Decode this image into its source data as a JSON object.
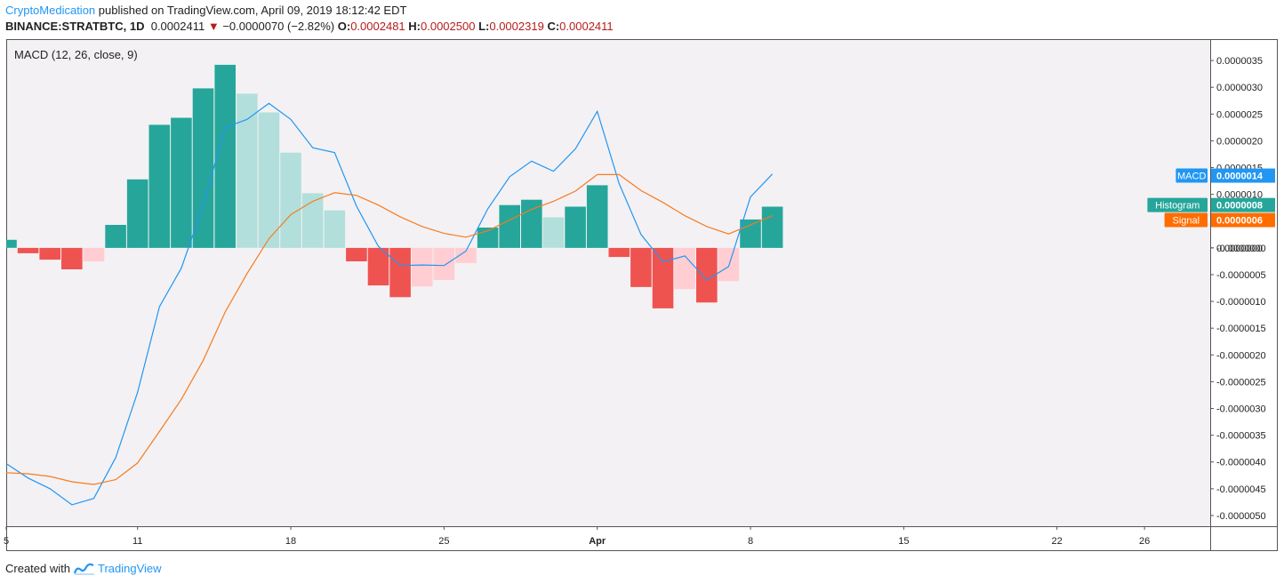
{
  "header": {
    "author": "CryptoMedication",
    "published_text": "published on TradingView.com, April 09, 2019 18:12:42 EDT",
    "symbol": "BINANCE:STRATBTC, 1D",
    "price": "0.0002411",
    "change": "−0.0000070 (−2.82%)",
    "open_label": "O:",
    "open": "0.0002481",
    "high_label": "H:",
    "high": "0.0002500",
    "low_label": "L:",
    "low": "0.0002319",
    "close_label": "C:",
    "close": "0.0002411"
  },
  "footer": {
    "created_with": "Created with",
    "brand": "TradingView"
  },
  "colors": {
    "macd_line": "#2196f3",
    "signal_line": "#f57c1f",
    "hist_pos_strong": "#26a69a",
    "hist_pos_weak": "#b2dfdb",
    "hist_neg_strong": "#ef5350",
    "hist_neg_weak": "#ffcdd2",
    "pane_bg": "#f3f1f4",
    "label_macd": "#2196f3",
    "label_hist": "#26a69a",
    "label_signal": "#ff6d00"
  },
  "chart_data": {
    "type": "bar",
    "title": "MACD (12, 26, close, 9)",
    "x_tick_labels": [
      "5",
      "11",
      "18",
      "25",
      "Apr",
      "8",
      "15",
      "22",
      "26"
    ],
    "y_ticks": [
      "0.0000035",
      "0.0000030",
      "0.0000025",
      "0.0000020",
      "0.0000015",
      "0.0000010",
      "0.0000005",
      "0.0000000",
      "-0.0000000",
      "-0.0000005",
      "-0.0000010",
      "-0.0000015",
      "-0.0000020",
      "-0.0000025",
      "-0.0000030",
      "-0.0000035",
      "-0.0000040",
      "-0.0000045",
      "-0.0000050"
    ],
    "y_tick_values": [
      3.5e-06,
      3e-06,
      2.5e-06,
      2e-06,
      1.5e-06,
      1e-06,
      5e-07,
      0,
      0,
      -5e-07,
      -1e-06,
      -1.5e-06,
      -2e-06,
      -2.5e-06,
      -3e-06,
      -3.5e-06,
      -4e-06,
      -4.5e-06,
      -5e-06
    ],
    "ylim": [
      -5.2e-06,
      3.9e-06
    ],
    "x_start": "2019-03-05",
    "x_end": "2019-04-29",
    "x_tick_dates": [
      "2019-03-05",
      "2019-03-11",
      "2019-03-18",
      "2019-03-25",
      "2019-04-01",
      "2019-04-08",
      "2019-04-15",
      "2019-04-22",
      "2019-04-26"
    ],
    "dates": [
      "2019-03-05",
      "2019-03-06",
      "2019-03-07",
      "2019-03-08",
      "2019-03-09",
      "2019-03-10",
      "2019-03-11",
      "2019-03-12",
      "2019-03-13",
      "2019-03-14",
      "2019-03-15",
      "2019-03-16",
      "2019-03-17",
      "2019-03-18",
      "2019-03-19",
      "2019-03-20",
      "2019-03-21",
      "2019-03-22",
      "2019-03-23",
      "2019-03-24",
      "2019-03-25",
      "2019-03-26",
      "2019-03-27",
      "2019-03-28",
      "2019-03-29",
      "2019-03-30",
      "2019-03-31",
      "2019-04-01",
      "2019-04-02",
      "2019-04-03",
      "2019-04-04",
      "2019-04-05",
      "2019-04-06",
      "2019-04-07",
      "2019-04-08",
      "2019-04-09"
    ],
    "series": [
      {
        "name": "Histogram",
        "kind": "histogram",
        "values": [
          1.5e-07,
          -1e-07,
          -2.2e-07,
          -4e-07,
          -2.5e-07,
          4.3e-07,
          1.28e-06,
          2.3e-06,
          2.43e-06,
          2.98e-06,
          3.42e-06,
          2.88e-06,
          2.53e-06,
          1.78e-06,
          1.02e-06,
          7e-07,
          -2.5e-07,
          -7e-07,
          -9.2e-07,
          -7.2e-07,
          -6e-07,
          -2.8e-07,
          3.8e-07,
          8e-07,
          9e-07,
          5.7e-07,
          7.7e-07,
          1.17e-06,
          -1.7e-07,
          -7.3e-07,
          -1.13e-06,
          -7.7e-07,
          -1.02e-06,
          -6.2e-07,
          5.3e-07,
          7.7e-07
        ]
      },
      {
        "name": "MACD",
        "kind": "line",
        "values": [
          -4.03e-06,
          -4.3e-06,
          -4.5e-06,
          -4.8e-06,
          -4.68e-06,
          -3.92e-06,
          -2.7e-06,
          -1.1e-06,
          -3.8e-07,
          8e-07,
          2.25e-06,
          2.4e-06,
          2.7e-06,
          2.4e-06,
          1.87e-06,
          1.78e-06,
          7.8e-07,
          3e-08,
          -3.3e-07,
          -3.2e-07,
          -3.3e-07,
          -6e-08,
          7.3e-07,
          1.33e-06,
          1.62e-06,
          1.43e-06,
          1.85e-06,
          2.55e-06,
          1.2e-06,
          2.5e-07,
          -2.6e-07,
          -1.5e-07,
          -6e-07,
          -3.5e-07,
          9.5e-07,
          1.38e-06
        ]
      },
      {
        "name": "Signal",
        "kind": "line",
        "values": [
          -4.2e-06,
          -4.22e-06,
          -4.27e-06,
          -4.37e-06,
          -4.42e-06,
          -4.33e-06,
          -4.02e-06,
          -3.43e-06,
          -2.83e-06,
          -2.1e-06,
          -1.2e-06,
          -4.8e-07,
          1.7e-07,
          6.2e-07,
          8.7e-07,
          1.03e-06,
          9.8e-07,
          8e-07,
          5.8e-07,
          4e-07,
          2.7e-07,
          2e-07,
          3.2e-07,
          5.2e-07,
          7.2e-07,
          8.7e-07,
          1.06e-06,
          1.37e-06,
          1.37e-06,
          1.07e-06,
          8.5e-07,
          6e-07,
          4e-07,
          2.6e-07,
          4.3e-07,
          6e-07
        ]
      }
    ],
    "price_labels": [
      {
        "name": "MACD",
        "value": "0.0000014",
        "y_value": 1.35e-06
      },
      {
        "name": "Histogram",
        "value": "0.0000008",
        "y_value": 8e-07
      },
      {
        "name": "Signal",
        "value": "0.0000006",
        "y_value": 5.2e-07
      }
    ],
    "grid": false,
    "legend": "top-left"
  }
}
